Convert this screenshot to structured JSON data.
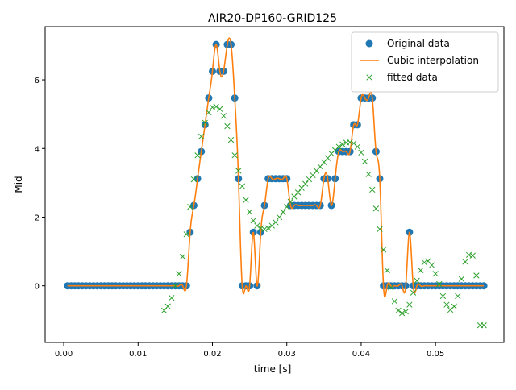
{
  "chart_data": {
    "type": "line",
    "title": "AIR20-DP160-GRID125",
    "xlabel": "time [s]",
    "ylabel": "Mid",
    "xlim": [
      -0.0025,
      0.0592
    ],
    "ylim": [
      -1.65,
      7.55
    ],
    "xticks": [
      0.0,
      0.01,
      0.02,
      0.03,
      0.04,
      0.05
    ],
    "xtick_labels": [
      "0.00",
      "0.01",
      "0.02",
      "0.03",
      "0.04",
      "0.05"
    ],
    "yticks": [
      0,
      2,
      4,
      6
    ],
    "ytick_labels": [
      "0",
      "2",
      "4",
      "6"
    ],
    "grid": false,
    "legend_position": "top-right",
    "colors": {
      "original": "#1f77b4",
      "cubic": "#ff7f0e",
      "fitted": "#2ca02c"
    },
    "series": [
      {
        "name": "Original data",
        "style": "markers-circle",
        "x": [
          0.0005,
          0.001,
          0.0015,
          0.002,
          0.0025,
          0.003,
          0.0035,
          0.004,
          0.0045,
          0.005,
          0.0055,
          0.006,
          0.0065,
          0.007,
          0.0075,
          0.008,
          0.0085,
          0.009,
          0.0095,
          0.01,
          0.0105,
          0.011,
          0.0115,
          0.012,
          0.0125,
          0.013,
          0.0135,
          0.014,
          0.0145,
          0.015,
          0.0155,
          0.016,
          0.0165,
          0.017,
          0.0175,
          0.018,
          0.0185,
          0.019,
          0.0195,
          0.02,
          0.0205,
          0.021,
          0.0215,
          0.022,
          0.0225,
          0.023,
          0.0235,
          0.024,
          0.0245,
          0.025,
          0.0255,
          0.026,
          0.0265,
          0.027,
          0.0275,
          0.028,
          0.0285,
          0.029,
          0.0295,
          0.03,
          0.0305,
          0.031,
          0.0315,
          0.032,
          0.0325,
          0.033,
          0.0335,
          0.034,
          0.0345,
          0.035,
          0.0355,
          0.036,
          0.0365,
          0.037,
          0.0375,
          0.038,
          0.0385,
          0.039,
          0.0395,
          0.04,
          0.0405,
          0.041,
          0.0415,
          0.042,
          0.0425,
          0.043,
          0.0435,
          0.044,
          0.0445,
          0.045,
          0.0455,
          0.046,
          0.0465,
          0.047,
          0.0475,
          0.048,
          0.0485,
          0.049,
          0.0495,
          0.05,
          0.0505,
          0.051,
          0.0515,
          0.052,
          0.0525,
          0.053,
          0.0535,
          0.054,
          0.0545,
          0.055,
          0.0555,
          0.056,
          0.0565
        ],
        "y": [
          0,
          0,
          0,
          0,
          0,
          0,
          0,
          0,
          0,
          0,
          0,
          0,
          0,
          0,
          0,
          0,
          0,
          0,
          0,
          0,
          0,
          0,
          0,
          0,
          0,
          0,
          0,
          0,
          0,
          0,
          0,
          0,
          0,
          1.56,
          2.34,
          3.12,
          3.91,
          4.69,
          5.47,
          6.25,
          7.03,
          6.25,
          6.25,
          7.03,
          7.03,
          5.47,
          3.12,
          0,
          0,
          0,
          1.56,
          0,
          1.56,
          2.34,
          3.12,
          3.12,
          3.12,
          3.12,
          3.12,
          3.12,
          2.34,
          2.34,
          2.34,
          2.34,
          2.34,
          2.34,
          2.34,
          2.34,
          2.34,
          3.12,
          3.12,
          2.34,
          3.12,
          3.91,
          3.91,
          3.91,
          3.91,
          4.69,
          4.69,
          5.47,
          5.47,
          5.47,
          5.47,
          3.91,
          3.12,
          0,
          0,
          0,
          0,
          0,
          0,
          0,
          1.56,
          0,
          0,
          0,
          0,
          0,
          0,
          0,
          0,
          0,
          0,
          0,
          0,
          0,
          0,
          0,
          0,
          0,
          0,
          0,
          0
        ]
      },
      {
        "name": "Cubic interpolation",
        "style": "line"
      },
      {
        "name": "fitted data",
        "style": "markers-x",
        "x": [
          0.0135,
          0.014,
          0.0145,
          0.015,
          0.0155,
          0.016,
          0.0165,
          0.017,
          0.0175,
          0.018,
          0.0185,
          0.019,
          0.0195,
          0.02,
          0.0205,
          0.021,
          0.0215,
          0.022,
          0.0225,
          0.023,
          0.0235,
          0.024,
          0.0245,
          0.025,
          0.0255,
          0.026,
          0.0265,
          0.027,
          0.0275,
          0.028,
          0.0285,
          0.029,
          0.0295,
          0.03,
          0.0305,
          0.031,
          0.0315,
          0.032,
          0.0325,
          0.033,
          0.0335,
          0.034,
          0.0345,
          0.035,
          0.0355,
          0.036,
          0.0365,
          0.037,
          0.0375,
          0.038,
          0.0385,
          0.039,
          0.0395,
          0.04,
          0.0405,
          0.041,
          0.0415,
          0.042,
          0.0425,
          0.043,
          0.0435,
          0.044,
          0.0445,
          0.045,
          0.0455,
          0.046,
          0.0465,
          0.047,
          0.0475,
          0.048,
          0.0485,
          0.049,
          0.0495,
          0.05,
          0.0505,
          0.051,
          0.0515,
          0.052,
          0.0525,
          0.053,
          0.0535,
          0.054,
          0.0545,
          0.055,
          0.0555,
          0.056,
          0.0565
        ],
        "y": [
          -0.72,
          -0.6,
          -0.35,
          0.0,
          0.35,
          0.85,
          1.5,
          2.3,
          3.1,
          3.8,
          4.35,
          4.75,
          5.05,
          5.2,
          5.22,
          5.15,
          4.95,
          4.65,
          4.25,
          3.8,
          3.35,
          2.9,
          2.5,
          2.15,
          1.9,
          1.75,
          1.68,
          1.65,
          1.68,
          1.75,
          1.85,
          2.0,
          2.15,
          2.3,
          2.45,
          2.6,
          2.72,
          2.85,
          2.97,
          3.1,
          3.22,
          3.35,
          3.47,
          3.6,
          3.72,
          3.85,
          3.95,
          4.05,
          4.12,
          4.17,
          4.18,
          4.15,
          4.05,
          3.88,
          3.62,
          3.25,
          2.8,
          2.25,
          1.65,
          1.05,
          0.45,
          -0.05,
          -0.45,
          -0.72,
          -0.8,
          -0.75,
          -0.55,
          -0.2,
          0.15,
          0.45,
          0.68,
          0.72,
          0.6,
          0.35,
          0.05,
          -0.3,
          -0.55,
          -0.7,
          -0.6,
          -0.3,
          0.2,
          0.7,
          0.9,
          0.88,
          0.3,
          -1.15,
          -1.15
        ]
      }
    ]
  }
}
